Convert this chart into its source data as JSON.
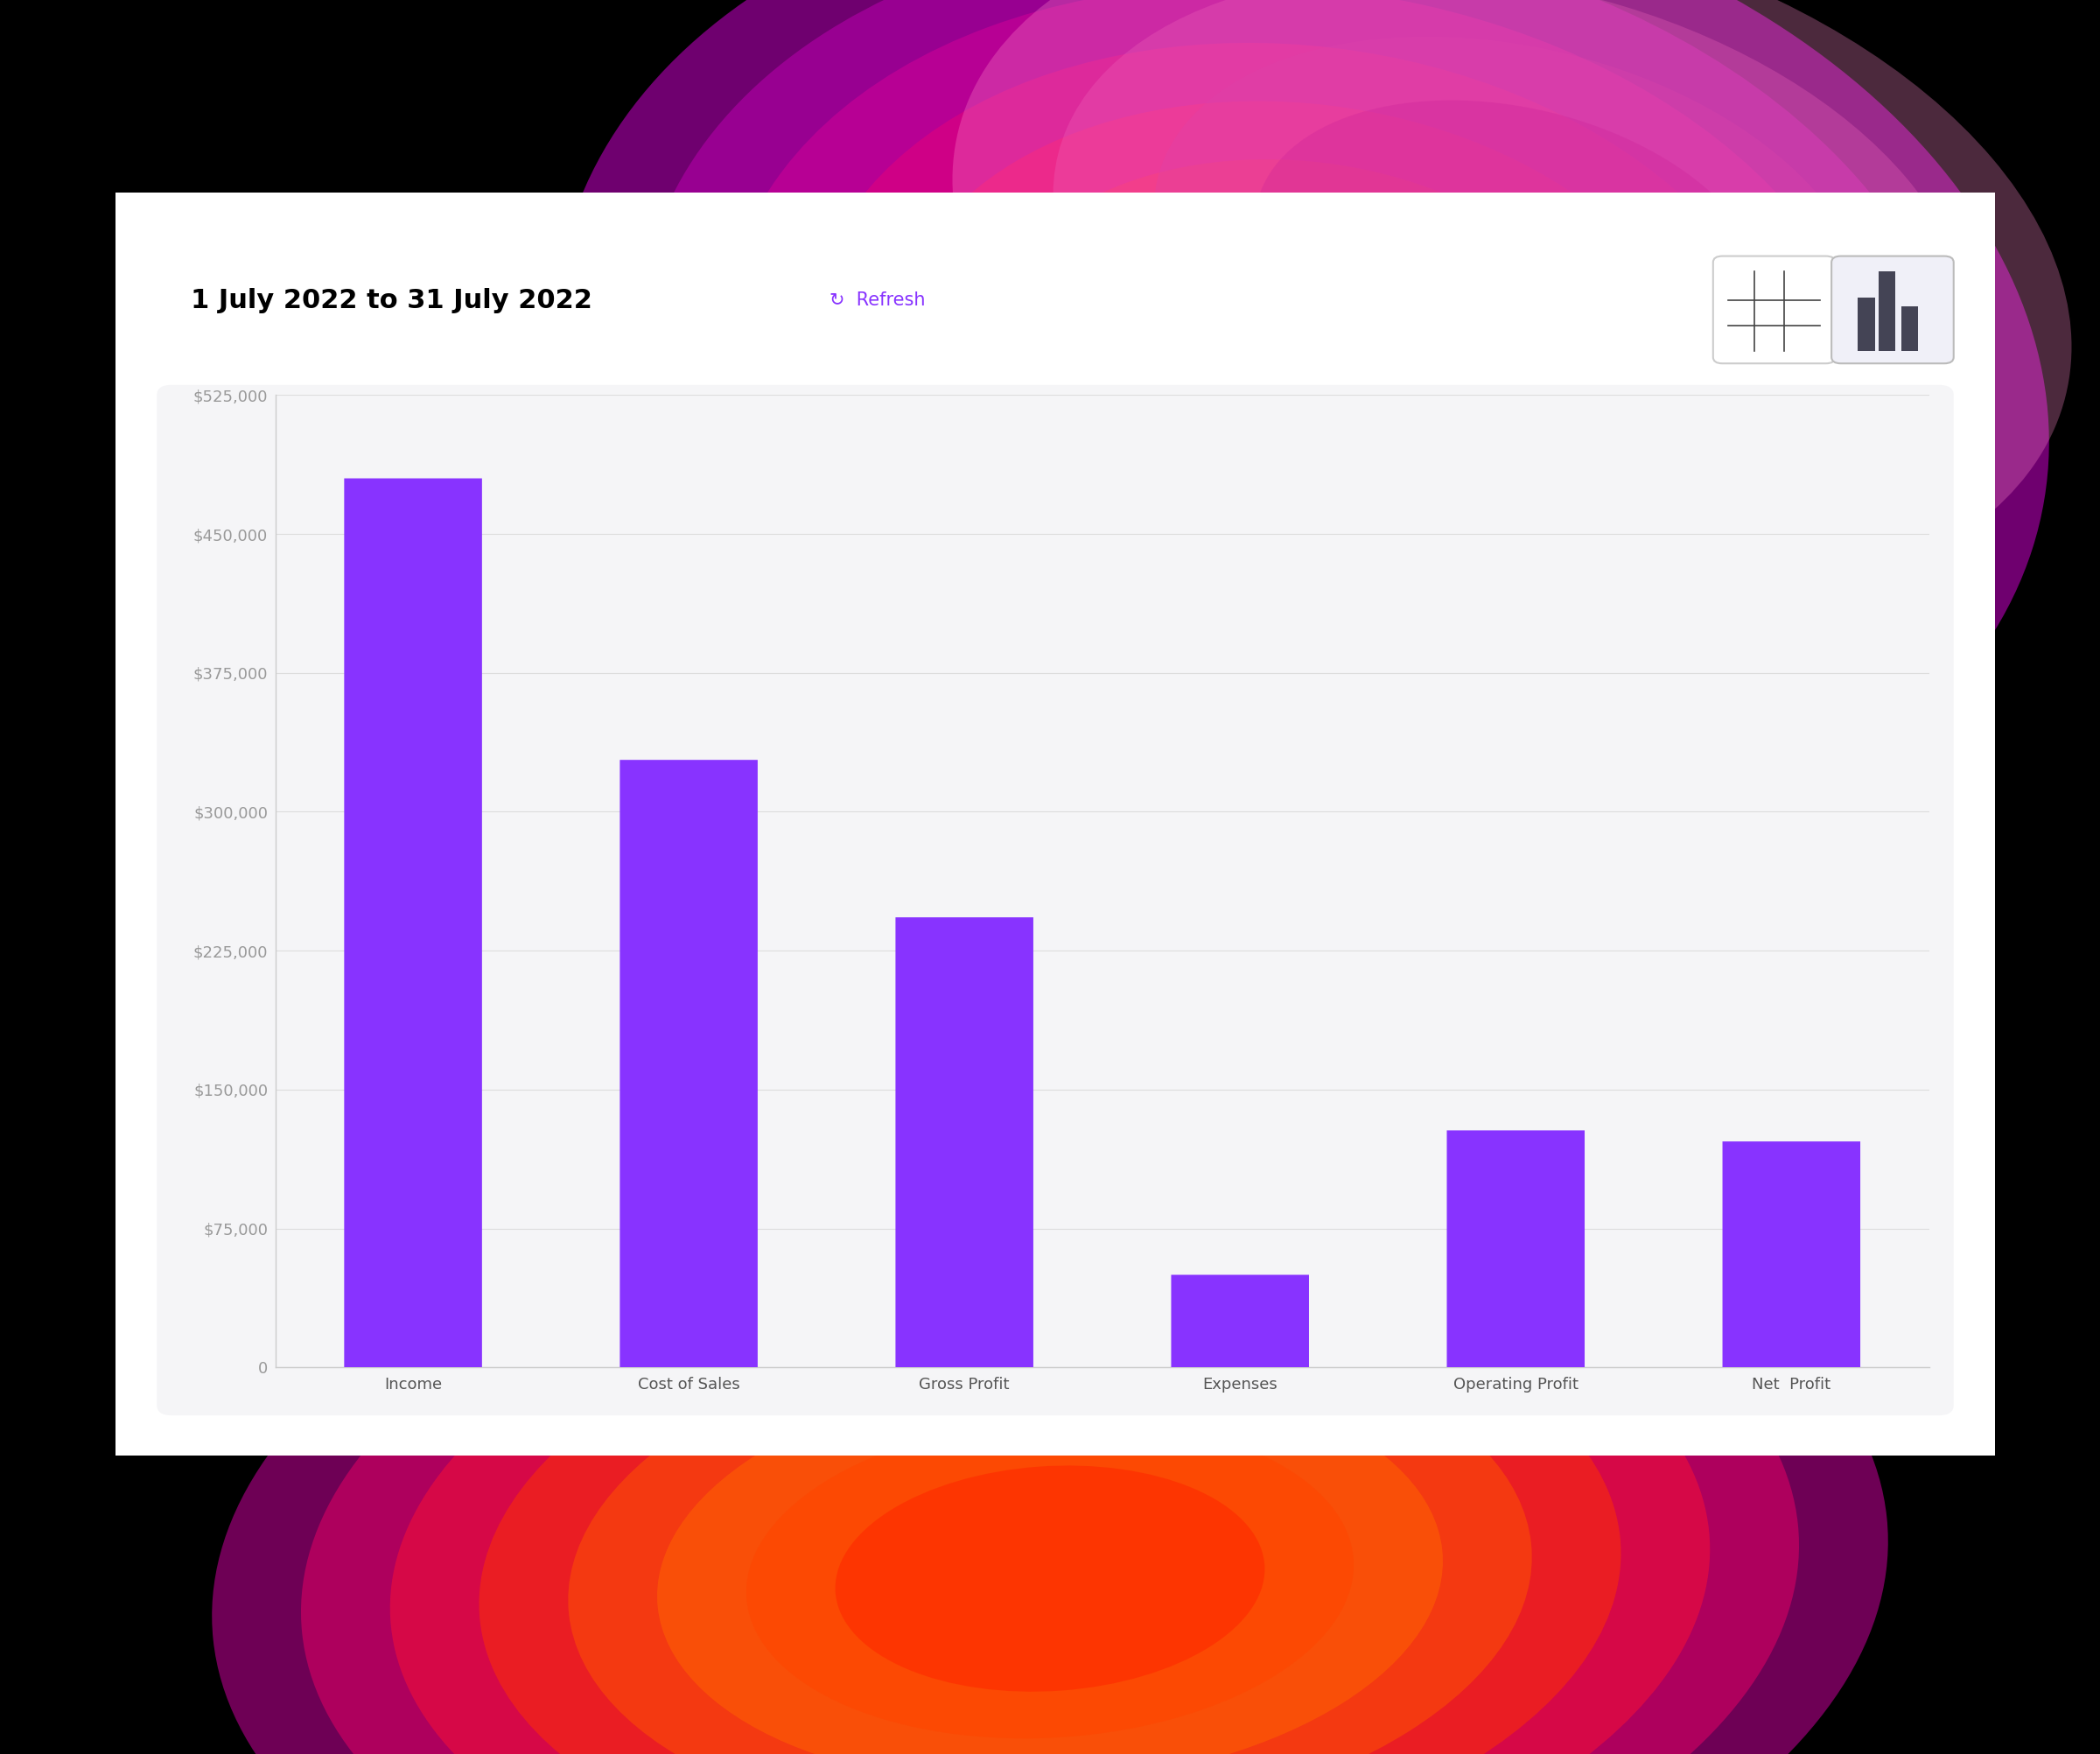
{
  "categories": [
    "Income",
    "Cost of Sales",
    "Gross Profit",
    "Expenses",
    "Operating Profit",
    "Net  Profit"
  ],
  "values": [
    480000,
    328000,
    243000,
    50000,
    128000,
    122000
  ],
  "bar_color": "#8833FF",
  "ylim": [
    0,
    525000
  ],
  "yticks": [
    0,
    75000,
    150000,
    225000,
    300000,
    375000,
    450000,
    525000
  ],
  "ytick_labels": [
    "0",
    "$75,000",
    "$150,000",
    "$225,000",
    "$300,000",
    "$375,000",
    "$450,000",
    "$525,000"
  ],
  "title": "1 July 2022 to 31 July 2022",
  "refresh_text": "Refresh",
  "refresh_color": "#8833FF",
  "chart_bg": "#F5F5F7",
  "outer_bg": "#000000",
  "title_fontsize": 22,
  "tick_fontsize": 13,
  "xtick_fontsize": 13,
  "bar_width": 0.5
}
